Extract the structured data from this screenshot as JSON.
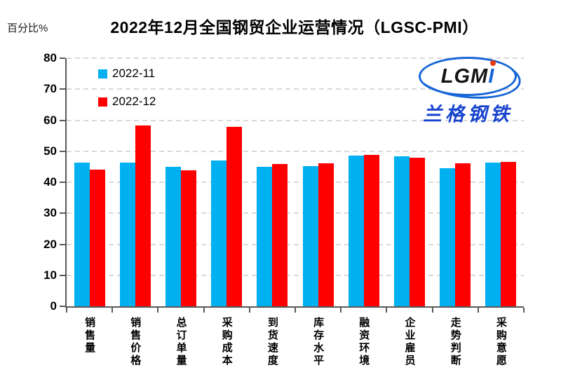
{
  "title": "2022年12月全国钢贸企业运营情况（LGSC-PMI）",
  "y_axis_unit": "百分比%",
  "legend": [
    {
      "label": "2022-11",
      "color": "#00b0f0"
    },
    {
      "label": "2022-12",
      "color": "#fe0000"
    }
  ],
  "logo": {
    "text_main": "LGM",
    "text_i": "I",
    "subtext": "兰格钢铁"
  },
  "colors": {
    "grid": "#d9d9d9",
    "axis": "#595959",
    "series1": "#00b0f0",
    "series2": "#fe0000"
  },
  "chart_data": {
    "type": "bar",
    "title": "2022年12月全国钢贸企业运营情况（LGSC-PMI）",
    "xlabel": "",
    "ylabel": "百分比%",
    "ylim": [
      0,
      80
    ],
    "ytick_interval": 10,
    "yticks": [
      0,
      10,
      20,
      30,
      40,
      50,
      60,
      70,
      80
    ],
    "grid": "horizontal-dashed",
    "legend_position": "top-left-inside",
    "categories": [
      "销售量",
      "销售价格",
      "总订单量",
      "采购成本",
      "到货速度",
      "库存水平",
      "融资环境",
      "企业雇员",
      "走势判断",
      "采购意愿"
    ],
    "series": [
      {
        "name": "2022-11",
        "color": "#00b0f0",
        "values": [
          46.4,
          46.3,
          45.0,
          47.0,
          44.9,
          45.2,
          48.6,
          48.4,
          44.5,
          46.3
        ]
      },
      {
        "name": "2022-12",
        "color": "#fe0000",
        "values": [
          44.0,
          58.4,
          43.9,
          57.9,
          45.9,
          46.1,
          48.9,
          48.0,
          46.1,
          46.6
        ]
      }
    ]
  }
}
